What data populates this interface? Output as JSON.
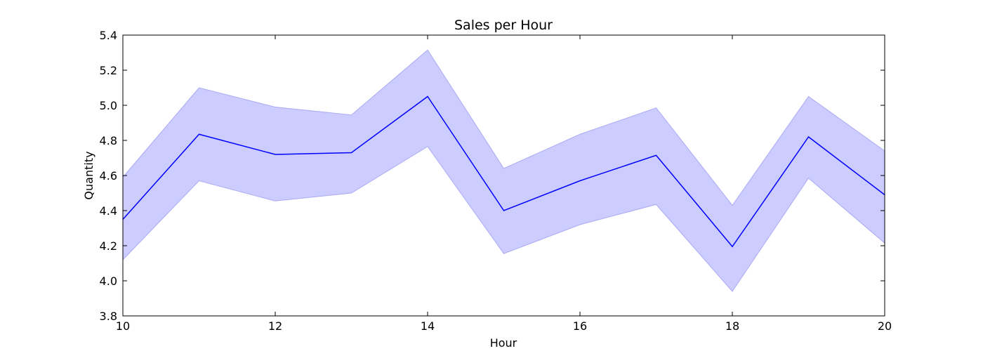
{
  "chart_data": {
    "type": "line",
    "title": "Sales per Hour",
    "xlabel": "Hour",
    "ylabel": "Quantity",
    "xlim": [
      10,
      20
    ],
    "ylim": [
      3.8,
      5.4
    ],
    "xticks": [
      10,
      12,
      14,
      16,
      18,
      20
    ],
    "xtick_labels": [
      "10",
      "12",
      "14",
      "16",
      "18",
      "20"
    ],
    "yticks": [
      3.8,
      4.0,
      4.2,
      4.4,
      4.6,
      4.8,
      5.0,
      5.2,
      5.4
    ],
    "ytick_labels": [
      "3.8",
      "4.0",
      "4.2",
      "4.4",
      "4.6",
      "4.8",
      "5.0",
      "5.2",
      "5.4"
    ],
    "grid": false,
    "legend": "none",
    "x": [
      10,
      11,
      12,
      13,
      14,
      15,
      16,
      17,
      18,
      19,
      20
    ],
    "series": [
      {
        "values": [
          4.35,
          4.835,
          4.72,
          4.73,
          5.05,
          4.4,
          4.57,
          4.715,
          4.195,
          4.82,
          4.49
        ],
        "band_lower": [
          4.12,
          4.57,
          4.455,
          4.5,
          4.765,
          4.155,
          4.32,
          4.435,
          3.94,
          4.585,
          4.215
        ],
        "band_upper": [
          4.59,
          5.1,
          4.99,
          4.945,
          5.315,
          4.64,
          4.835,
          4.985,
          4.43,
          5.05,
          4.74
        ],
        "line_color": "#0000ff",
        "band_color": "#ccccff"
      }
    ]
  }
}
